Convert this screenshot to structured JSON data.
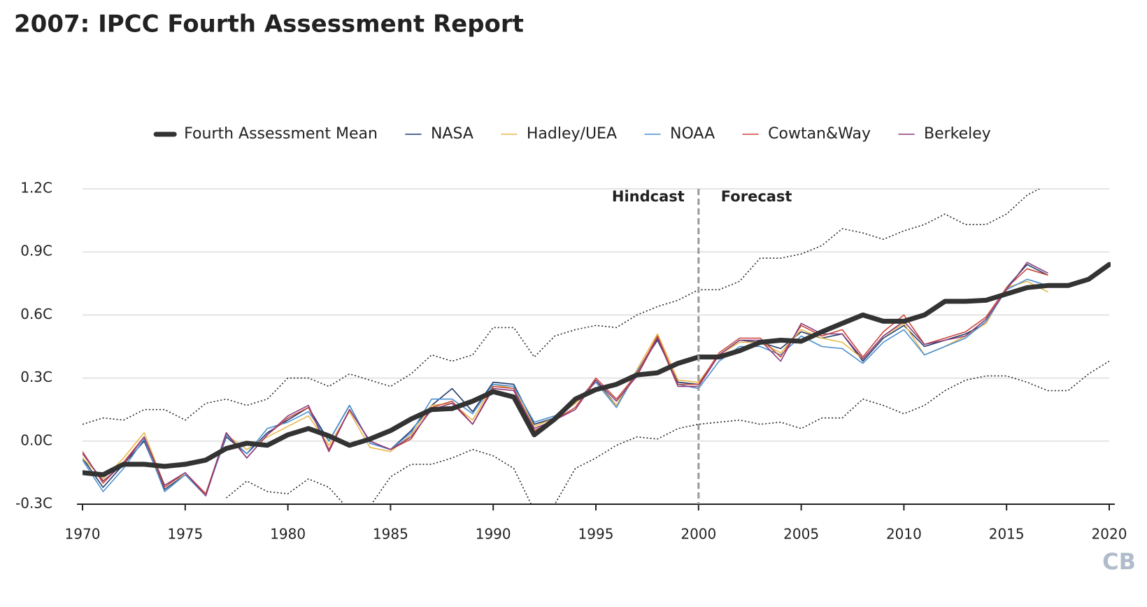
{
  "chart_data": {
    "type": "line",
    "title": "2007: IPCC Fourth Assessment Report",
    "x": [
      1970,
      1971,
      1972,
      1973,
      1974,
      1975,
      1976,
      1977,
      1978,
      1979,
      1980,
      1981,
      1982,
      1983,
      1984,
      1985,
      1986,
      1987,
      1988,
      1989,
      1990,
      1991,
      1992,
      1993,
      1994,
      1995,
      1996,
      1997,
      1998,
      1999,
      2000,
      2001,
      2002,
      2003,
      2004,
      2005,
      2006,
      2007,
      2008,
      2009,
      2010,
      2011,
      2012,
      2013,
      2014,
      2015,
      2016,
      2017,
      2018,
      2019,
      2020
    ],
    "series": [
      {
        "name": "Fourth Assessment Mean",
        "color": "#333333",
        "line_width": 7,
        "values": [
          -0.15,
          -0.16,
          -0.11,
          -0.11,
          -0.12,
          -0.11,
          -0.09,
          -0.035,
          -0.01,
          -0.02,
          0.03,
          0.06,
          0.025,
          -0.02,
          0.01,
          0.05,
          0.105,
          0.15,
          0.155,
          0.19,
          0.235,
          0.21,
          0.03,
          0.105,
          0.2,
          0.245,
          0.27,
          0.315,
          0.325,
          0.37,
          0.4,
          0.4,
          0.43,
          0.47,
          0.48,
          0.475,
          0.52,
          0.56,
          0.6,
          0.57,
          0.57,
          0.6,
          0.665,
          0.665,
          0.67,
          0.7,
          0.73,
          0.74,
          0.74,
          0.77,
          0.84
        ]
      },
      {
        "name": "NASA",
        "color": "#1f3a6b",
        "line_width": 1.6,
        "values": [
          -0.08,
          -0.22,
          -0.11,
          0.0,
          -0.23,
          -0.16,
          -0.25,
          0.02,
          -0.06,
          0.04,
          0.1,
          0.16,
          0.0,
          0.17,
          -0.01,
          -0.04,
          0.05,
          0.17,
          0.25,
          0.14,
          0.28,
          0.27,
          0.08,
          0.11,
          0.18,
          0.29,
          0.17,
          0.33,
          0.48,
          0.28,
          0.27,
          0.41,
          0.48,
          0.47,
          0.44,
          0.52,
          0.49,
          0.51,
          0.38,
          0.49,
          0.55,
          0.45,
          0.48,
          0.51,
          0.56,
          0.73,
          0.84,
          0.79,
          null,
          null,
          null
        ]
      },
      {
        "name": "Hadley/UEA",
        "color": "#e8b84a",
        "line_width": 1.6,
        "values": [
          -0.08,
          -0.18,
          -0.08,
          0.04,
          -0.21,
          -0.16,
          -0.25,
          0.03,
          -0.04,
          0.02,
          0.07,
          0.12,
          -0.02,
          0.14,
          -0.03,
          -0.05,
          0.03,
          0.17,
          0.18,
          0.1,
          0.27,
          0.25,
          0.07,
          0.11,
          0.18,
          0.28,
          0.17,
          0.34,
          0.51,
          0.29,
          0.28,
          0.41,
          0.47,
          0.47,
          0.42,
          0.53,
          0.49,
          0.47,
          0.39,
          0.5,
          0.56,
          0.41,
          0.45,
          0.5,
          0.56,
          0.73,
          0.76,
          0.71,
          null,
          null,
          null
        ]
      },
      {
        "name": "NOAA",
        "color": "#4a8fd0",
        "line_width": 1.6,
        "values": [
          -0.09,
          -0.24,
          -0.13,
          0.01,
          -0.24,
          -0.16,
          -0.26,
          0.03,
          -0.06,
          0.06,
          0.09,
          0.14,
          0.0,
          0.17,
          -0.01,
          -0.04,
          0.04,
          0.2,
          0.2,
          0.13,
          0.27,
          0.26,
          0.09,
          0.12,
          0.19,
          0.28,
          0.16,
          0.33,
          0.49,
          0.27,
          0.25,
          0.38,
          0.45,
          0.45,
          0.41,
          0.5,
          0.45,
          0.44,
          0.37,
          0.47,
          0.53,
          0.41,
          0.45,
          0.49,
          0.57,
          0.72,
          0.77,
          0.74,
          null,
          null,
          null
        ]
      },
      {
        "name": "Cowtan&Way",
        "color": "#c9473b",
        "line_width": 1.6,
        "values": [
          -0.05,
          -0.2,
          -0.1,
          0.02,
          -0.22,
          -0.15,
          -0.25,
          0.04,
          -0.08,
          0.03,
          0.11,
          0.16,
          -0.04,
          0.15,
          0.0,
          -0.04,
          0.01,
          0.16,
          0.19,
          0.08,
          0.26,
          0.25,
          0.05,
          0.1,
          0.16,
          0.3,
          0.2,
          0.32,
          0.5,
          0.27,
          0.27,
          0.42,
          0.49,
          0.49,
          0.4,
          0.55,
          0.5,
          0.53,
          0.4,
          0.52,
          0.6,
          0.46,
          0.49,
          0.52,
          0.59,
          0.73,
          0.82,
          0.79,
          null,
          null,
          null
        ]
      },
      {
        "name": "Berkeley",
        "color": "#8a3a7a",
        "line_width": 1.6,
        "values": [
          -0.06,
          -0.19,
          -0.11,
          0.02,
          -0.21,
          -0.15,
          -0.26,
          0.04,
          -0.08,
          0.03,
          0.12,
          0.17,
          -0.05,
          0.15,
          0.0,
          -0.04,
          0.02,
          0.15,
          0.18,
          0.08,
          0.25,
          0.24,
          0.06,
          0.1,
          0.15,
          0.29,
          0.19,
          0.31,
          0.49,
          0.26,
          0.26,
          0.41,
          0.48,
          0.48,
          0.38,
          0.56,
          0.51,
          0.51,
          0.39,
          0.5,
          0.57,
          0.46,
          0.48,
          0.5,
          0.58,
          0.72,
          0.85,
          0.8,
          null,
          null,
          null
        ]
      }
    ],
    "range": {
      "color": "#222222",
      "upper": [
        0.08,
        0.11,
        0.1,
        0.15,
        0.15,
        0.1,
        0.18,
        0.2,
        0.17,
        0.2,
        0.3,
        0.3,
        0.26,
        0.32,
        0.29,
        0.26,
        0.32,
        0.41,
        0.38,
        0.41,
        0.54,
        0.54,
        0.4,
        0.5,
        0.53,
        0.55,
        0.54,
        0.6,
        0.64,
        0.67,
        0.72,
        0.72,
        0.76,
        0.87,
        0.87,
        0.89,
        0.93,
        1.01,
        0.99,
        0.96,
        1.0,
        1.03,
        1.08,
        1.03,
        1.03,
        1.08,
        1.17,
        1.22,
        null,
        null,
        null
      ],
      "lower": [
        null,
        null,
        null,
        null,
        null,
        null,
        null,
        -0.27,
        -0.19,
        -0.24,
        -0.25,
        -0.18,
        -0.22,
        -0.33,
        -0.31,
        -0.17,
        -0.11,
        -0.11,
        -0.08,
        -0.04,
        -0.07,
        -0.13,
        -0.33,
        -0.3,
        -0.13,
        -0.08,
        -0.02,
        0.02,
        0.01,
        0.06,
        0.08,
        0.09,
        0.1,
        0.08,
        0.09,
        0.06,
        0.11,
        0.11,
        0.2,
        0.17,
        0.13,
        0.17,
        0.24,
        0.29,
        0.31,
        0.31,
        0.28,
        0.24,
        0.24,
        0.32,
        0.38
      ]
    },
    "divider": {
      "x": 2000,
      "left_label": "Hindcast",
      "right_label": "Forecast"
    },
    "xlim": [
      1970,
      2020
    ],
    "xticks": [
      1970,
      1975,
      1980,
      1985,
      1990,
      1995,
      2000,
      2005,
      2010,
      2015,
      2020
    ],
    "ylim": [
      -0.3,
      1.2
    ],
    "yticks": [
      {
        "value": -0.3,
        "label": "-0.3C"
      },
      {
        "value": 0,
        "label": "0.0C"
      },
      {
        "value": 0.3,
        "label": "0.3C"
      },
      {
        "value": 0.6,
        "label": "0.6C"
      },
      {
        "value": 0.9,
        "label": "0.9C"
      },
      {
        "value": 1.2,
        "label": "1.2C"
      }
    ],
    "grid": true,
    "legend": "top",
    "logo": "CB"
  }
}
